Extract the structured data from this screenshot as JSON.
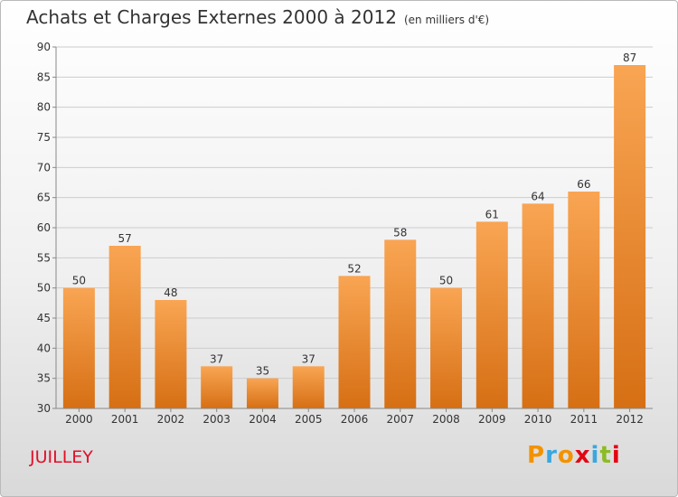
{
  "header": {
    "title": "Achats et Charges Externes 2000 à 2012",
    "subtitle": "(en milliers d'€)"
  },
  "footer": {
    "commune": "JUILLEY",
    "logo": "Proxiti"
  },
  "colors": {
    "bar_top": "#f9a553",
    "bar_bottom": "#d66f14",
    "grid": "#cccccc",
    "axis": "#888888",
    "commune": "#e0102a",
    "logo_letters": [
      "#f39200",
      "#3aa7df",
      "#f39200",
      "#e30613",
      "#3aa7df",
      "#8cbb26",
      "#e30613"
    ]
  },
  "chart_data": {
    "type": "bar",
    "title": "Achats et Charges Externes 2000 à 2012",
    "subtitle": "(en milliers d'€)",
    "xlabel": "",
    "ylabel": "",
    "categories": [
      "2000",
      "2001",
      "2002",
      "2003",
      "2004",
      "2005",
      "2006",
      "2007",
      "2008",
      "2009",
      "2010",
      "2011",
      "2012"
    ],
    "values": [
      50,
      57,
      48,
      37,
      35,
      37,
      52,
      58,
      50,
      61,
      64,
      66,
      87
    ],
    "ylim": [
      30,
      90
    ],
    "yticks": [
      30,
      35,
      40,
      45,
      50,
      55,
      60,
      65,
      70,
      75,
      80,
      85,
      90
    ],
    "grid": true,
    "legend": "none"
  }
}
